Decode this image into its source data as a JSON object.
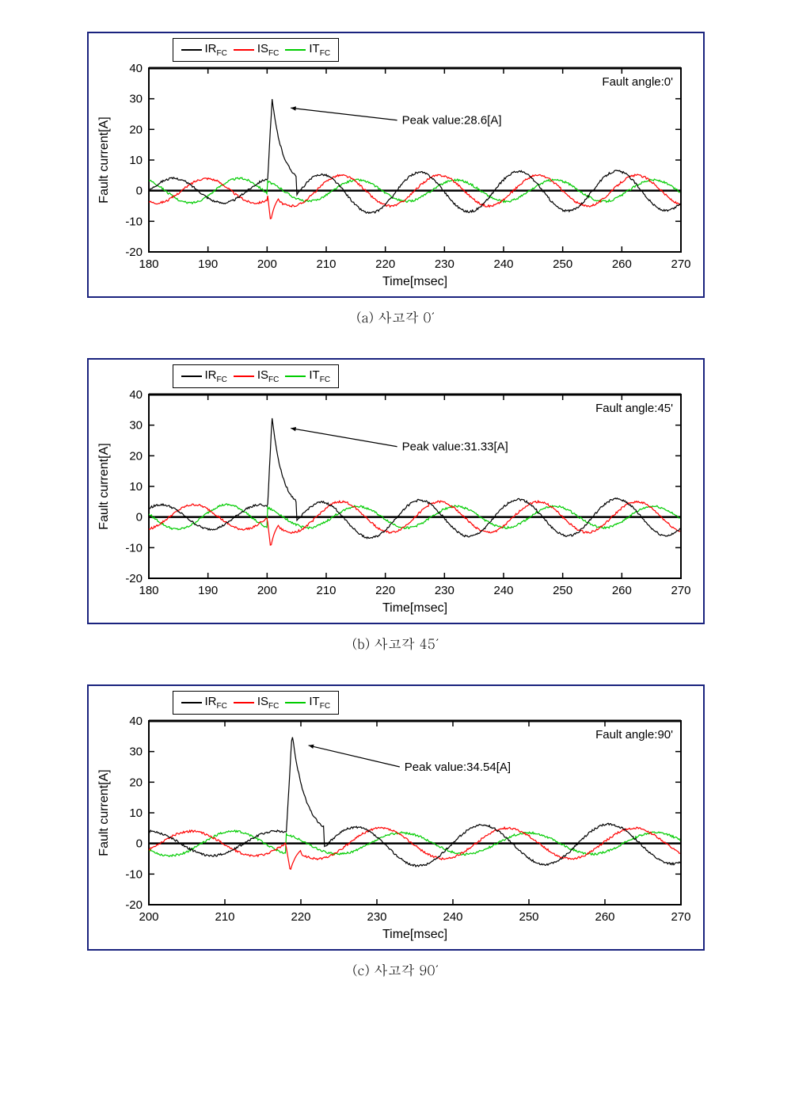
{
  "global": {
    "legend": {
      "items": [
        {
          "label_main": "IR",
          "label_sub": "FC",
          "color": "#000000"
        },
        {
          "label_main": "IS",
          "label_sub": "FC",
          "color": "#ff0000"
        },
        {
          "label_main": "IT",
          "label_sub": "FC",
          "color": "#00cc00"
        }
      ]
    },
    "xlabel": "Time[msec]",
    "ylabel": "Fault current[A]",
    "ylim": [
      -20,
      40
    ],
    "yticks": [
      -20,
      -10,
      0,
      10,
      20,
      30,
      40
    ],
    "frame_color": "#1a237e",
    "series_colors": {
      "IR": "#000000",
      "IS": "#ff0000",
      "IT": "#00cc00"
    },
    "plot_bg": "#ffffff",
    "axis_line_width": 2,
    "data_line_width": 1.2
  },
  "charts": [
    {
      "id": "a",
      "caption": "(a) 사고각 0′",
      "fault_angle_label": "Fault angle:0'",
      "peak_label": "Peak value:28.6[A]",
      "peak_value": 28.6,
      "peak_time": 201,
      "xlim": [
        180,
        270
      ],
      "xticks": [
        180,
        190,
        200,
        210,
        220,
        230,
        240,
        250,
        260,
        270
      ],
      "pre_amp": {
        "IR": 4,
        "IS": 4,
        "IT": 4
      },
      "pre_phase_deg": {
        "IR": 0,
        "IS": -120,
        "IT": 120
      },
      "fault_time": 200,
      "period_ms": 16.67,
      "post": {
        "IR": {
          "amp": 6.5,
          "phase_deg": 0,
          "decay_tail_amp": 0
        },
        "IS": {
          "amp": 5,
          "phase_deg": 180,
          "spike": -10
        },
        "IT": {
          "amp": 3.5,
          "phase_deg": 120
        }
      },
      "arrow": {
        "from": [
          222,
          23
        ],
        "to": [
          204,
          27
        ]
      }
    },
    {
      "id": "b",
      "caption": "(b) 사고각 45′",
      "fault_angle_label": "Fault angle:45'",
      "peak_label": "Peak value:31.33[A]",
      "peak_value": 31.33,
      "peak_time": 201,
      "xlim": [
        180,
        270
      ],
      "xticks": [
        180,
        190,
        200,
        210,
        220,
        230,
        240,
        250,
        260,
        270
      ],
      "pre_amp": {
        "IR": 4,
        "IS": 4,
        "IT": 4
      },
      "pre_phase_deg": {
        "IR": 45,
        "IS": -75,
        "IT": 165
      },
      "fault_time": 200,
      "period_ms": 16.67,
      "post": {
        "IR": {
          "amp": 6,
          "phase_deg": 0
        },
        "IS": {
          "amp": 5,
          "phase_deg": 180,
          "spike": -10
        },
        "IT": {
          "amp": 3.5,
          "phase_deg": 120
        }
      },
      "arrow": {
        "from": [
          222,
          23
        ],
        "to": [
          204,
          29
        ]
      }
    },
    {
      "id": "c",
      "caption": "(c) 사고각 90′",
      "fault_angle_label": "Fault angle:90'",
      "peak_label": "Peak value:34.54[A]",
      "peak_value": 34.54,
      "peak_time": 219,
      "xlim": [
        200,
        270
      ],
      "xticks": [
        200,
        210,
        220,
        230,
        240,
        250,
        260,
        270
      ],
      "pre_amp": {
        "IR": 4,
        "IS": 4,
        "IT": 4
      },
      "pre_phase_deg": {
        "IR": 90,
        "IS": -30,
        "IT": 210
      },
      "fault_time": 218,
      "period_ms": 16.67,
      "post": {
        "IR": {
          "amp": 6.5,
          "phase_deg": 0
        },
        "IS": {
          "amp": 5,
          "phase_deg": 180,
          "spike": -9
        },
        "IT": {
          "amp": 3.5,
          "phase_deg": 120
        }
      },
      "arrow": {
        "from": [
          233,
          25
        ],
        "to": [
          221,
          32
        ]
      }
    }
  ]
}
